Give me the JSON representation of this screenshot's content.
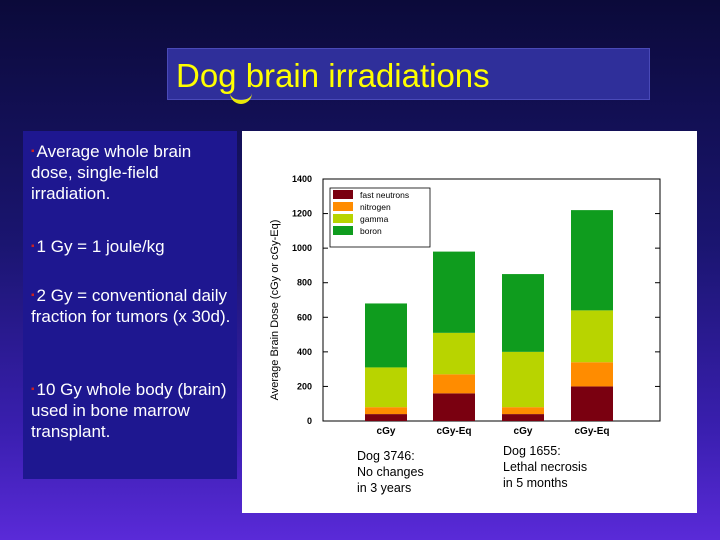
{
  "slide": {
    "title": "Dog brain irradiations",
    "bullets": [
      "Average whole brain dose, single-field irradiation.",
      "1 Gy = 1 joule/kg",
      "2 Gy = conventional daily fraction for tumors (x 30d).",
      "10 Gy whole body (brain) used in bone marrow transplant."
    ]
  },
  "chart_data": {
    "type": "bar",
    "stacked": true,
    "ylabel": "Average Brain Dose (cGy or cGy-Eq)",
    "ylim": [
      0,
      1400
    ],
    "yticks": [
      "0",
      "200",
      "400",
      "600",
      "800",
      "1000",
      "1200",
      "1400"
    ],
    "categories": [
      "cGy",
      "cGy-Eq",
      "cGy",
      "cGy-Eq"
    ],
    "series": [
      {
        "name": "fast neutrons",
        "color": "#7a0010",
        "values": [
          40,
          160,
          40,
          200
        ]
      },
      {
        "name": "nitrogen",
        "color": "#ff8c00",
        "values": [
          40,
          110,
          40,
          140
        ]
      },
      {
        "name": "gamma",
        "color": "#b8d400",
        "values": [
          230,
          240,
          320,
          300
        ]
      },
      {
        "name": "boron",
        "color": "#0f9c1e",
        "values": [
          370,
          470,
          450,
          580
        ]
      }
    ],
    "legend_position": "top-left",
    "annotations": [
      {
        "text": [
          "Dog 3746:",
          "No changes",
          "in 3 years"
        ]
      },
      {
        "text": [
          "Dog 1655:",
          "Lethal necrosis",
          "in 5 months"
        ]
      }
    ]
  }
}
